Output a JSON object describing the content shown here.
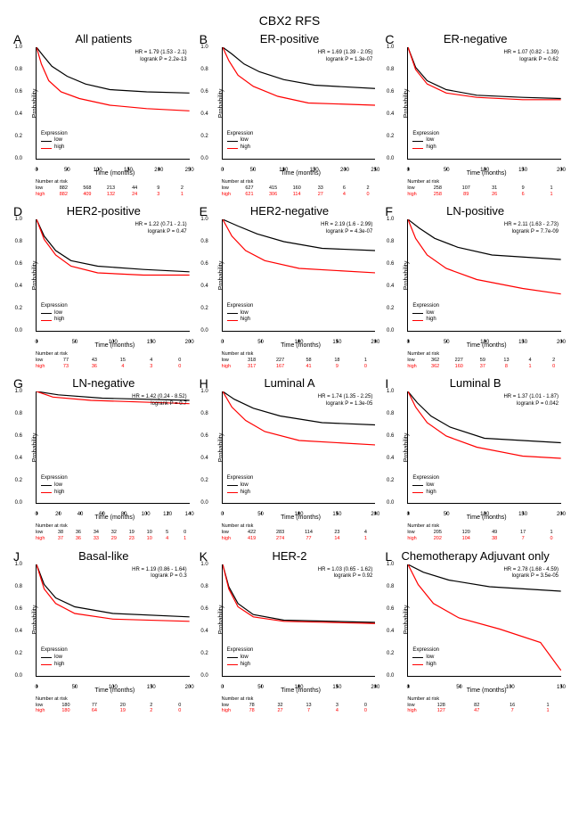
{
  "main_title": "CBX2 RFS",
  "colors": {
    "low": "#000000",
    "high": "#ff0000",
    "axis": "#000000",
    "background": "#ffffff"
  },
  "axis": {
    "ylabel": "Probability",
    "xlabel": "Time (months)",
    "yticks": [
      0.0,
      0.2,
      0.4,
      0.6,
      0.8,
      1.0
    ],
    "legend_title": "Expression",
    "legend_labels": [
      "low",
      "high"
    ],
    "risk_title": "Number at risk"
  },
  "panels": [
    {
      "letter": "A",
      "title": "All patients",
      "hr": "HR = 1.79 (1.53 - 2.1)",
      "logrank": "logrank P = 2.2e-13",
      "xmax": 250,
      "xtick_step": 50,
      "low_curve": [
        [
          0,
          1.0
        ],
        [
          10,
          0.93
        ],
        [
          25,
          0.83
        ],
        [
          50,
          0.74
        ],
        [
          80,
          0.67
        ],
        [
          120,
          0.62
        ],
        [
          180,
          0.6
        ],
        [
          250,
          0.59
        ]
      ],
      "high_curve": [
        [
          0,
          1.0
        ],
        [
          8,
          0.85
        ],
        [
          20,
          0.7
        ],
        [
          40,
          0.6
        ],
        [
          70,
          0.54
        ],
        [
          120,
          0.48
        ],
        [
          180,
          0.45
        ],
        [
          250,
          0.43
        ]
      ],
      "risk_low": [
        "882",
        "568",
        "213",
        "44",
        "9",
        "2"
      ],
      "risk_high": [
        "882",
        "409",
        "132",
        "24",
        "3",
        "1"
      ],
      "risk_positions": [
        0,
        50,
        100,
        150,
        200,
        250
      ]
    },
    {
      "letter": "B",
      "title": "ER-positive",
      "hr": "HR = 1.69 (1.39 - 2.05)",
      "logrank": "logrank P = 1.3e-07",
      "xmax": 250,
      "xtick_step": 50,
      "low_curve": [
        [
          0,
          1.0
        ],
        [
          15,
          0.94
        ],
        [
          35,
          0.85
        ],
        [
          60,
          0.78
        ],
        [
          100,
          0.71
        ],
        [
          150,
          0.66
        ],
        [
          250,
          0.63
        ]
      ],
      "high_curve": [
        [
          0,
          1.0
        ],
        [
          10,
          0.88
        ],
        [
          25,
          0.75
        ],
        [
          50,
          0.65
        ],
        [
          90,
          0.56
        ],
        [
          140,
          0.5
        ],
        [
          250,
          0.48
        ]
      ],
      "risk_low": [
        "627",
        "415",
        "160",
        "33",
        "6",
        "2"
      ],
      "risk_high": [
        "621",
        "306",
        "114",
        "27",
        "4",
        "0"
      ],
      "risk_positions": [
        0,
        50,
        100,
        150,
        200,
        250
      ]
    },
    {
      "letter": "C",
      "title": "ER-negative",
      "hr": "HR = 1.07 (0.82 - 1.39)",
      "logrank": "logrank P = 0.62",
      "xmax": 200,
      "xtick_step": 50,
      "low_curve": [
        [
          0,
          1.0
        ],
        [
          10,
          0.82
        ],
        [
          25,
          0.7
        ],
        [
          50,
          0.62
        ],
        [
          90,
          0.57
        ],
        [
          150,
          0.55
        ],
        [
          200,
          0.54
        ]
      ],
      "high_curve": [
        [
          0,
          1.0
        ],
        [
          10,
          0.8
        ],
        [
          25,
          0.67
        ],
        [
          50,
          0.59
        ],
        [
          90,
          0.55
        ],
        [
          150,
          0.53
        ],
        [
          200,
          0.53
        ]
      ],
      "risk_low": [
        "258",
        "107",
        "31",
        "9",
        "1"
      ],
      "risk_high": [
        "258",
        "89",
        "26",
        "6",
        "1"
      ],
      "risk_positions": [
        0,
        50,
        100,
        150,
        200
      ]
    },
    {
      "letter": "D",
      "title": "HER2-positive",
      "hr": "HR = 1.22 (0.71 - 2.1)",
      "logrank": "logrank P = 0.47",
      "xmax": 200,
      "xtick_step": 50,
      "low_curve": [
        [
          0,
          1.0
        ],
        [
          10,
          0.85
        ],
        [
          25,
          0.72
        ],
        [
          45,
          0.63
        ],
        [
          80,
          0.58
        ],
        [
          140,
          0.55
        ],
        [
          200,
          0.53
        ]
      ],
      "high_curve": [
        [
          0,
          1.0
        ],
        [
          10,
          0.82
        ],
        [
          25,
          0.68
        ],
        [
          45,
          0.58
        ],
        [
          80,
          0.52
        ],
        [
          140,
          0.5
        ],
        [
          200,
          0.5
        ]
      ],
      "risk_low": [
        "77",
        "43",
        "15",
        "4",
        "0"
      ],
      "risk_high": [
        "73",
        "36",
        "4",
        "3",
        "0"
      ],
      "risk_positions": [
        0,
        50,
        100,
        150,
        200
      ]
    },
    {
      "letter": "E",
      "title": "HER2-negative",
      "hr": "HR = 2.19 (1.6 - 2.99)",
      "logrank": "logrank P = 4.3e-07",
      "xmax": 200,
      "xtick_step": 50,
      "low_curve": [
        [
          0,
          1.0
        ],
        [
          20,
          0.94
        ],
        [
          45,
          0.87
        ],
        [
          80,
          0.8
        ],
        [
          130,
          0.74
        ],
        [
          200,
          0.72
        ]
      ],
      "high_curve": [
        [
          0,
          1.0
        ],
        [
          12,
          0.85
        ],
        [
          30,
          0.72
        ],
        [
          55,
          0.63
        ],
        [
          100,
          0.56
        ],
        [
          200,
          0.52
        ]
      ],
      "risk_low": [
        "318",
        "227",
        "58",
        "18",
        "1"
      ],
      "risk_high": [
        "317",
        "167",
        "41",
        "9",
        "0"
      ],
      "risk_positions": [
        0,
        50,
        100,
        150,
        200
      ]
    },
    {
      "letter": "F",
      "title": "LN-positive",
      "hr": "HR = 2.11 (1.63 - 2.73)",
      "logrank": "logrank P = 7.7e-09",
      "xmax": 200,
      "xtick_step": 50,
      "low_curve": [
        [
          0,
          1.0
        ],
        [
          15,
          0.92
        ],
        [
          35,
          0.83
        ],
        [
          65,
          0.75
        ],
        [
          110,
          0.68
        ],
        [
          200,
          0.64
        ]
      ],
      "high_curve": [
        [
          0,
          1.0
        ],
        [
          10,
          0.83
        ],
        [
          25,
          0.68
        ],
        [
          50,
          0.56
        ],
        [
          90,
          0.46
        ],
        [
          150,
          0.38
        ],
        [
          200,
          0.33
        ]
      ],
      "risk_low": [
        "362",
        "227",
        "59",
        "13",
        "4",
        "2"
      ],
      "risk_high": [
        "362",
        "160",
        "37",
        "8",
        "1",
        "0"
      ],
      "risk_positions": [
        0,
        40,
        80,
        120,
        160,
        200
      ]
    },
    {
      "letter": "G",
      "title": "LN-negative",
      "hr": "HR = 1.42 (0.24 - 8.52)",
      "logrank": "logrank P = 0.7",
      "xmax": 140,
      "xtick_step": 20,
      "low_curve": [
        [
          0,
          1.0
        ],
        [
          20,
          0.97
        ],
        [
          60,
          0.94
        ],
        [
          140,
          0.92
        ]
      ],
      "high_curve": [
        [
          0,
          1.0
        ],
        [
          15,
          0.95
        ],
        [
          50,
          0.92
        ],
        [
          140,
          0.89
        ]
      ],
      "risk_low": [
        "38",
        "36",
        "34",
        "32",
        "19",
        "10",
        "5",
        "0"
      ],
      "risk_high": [
        "37",
        "36",
        "33",
        "29",
        "23",
        "10",
        "4",
        "1"
      ],
      "risk_positions": [
        0,
        20,
        40,
        60,
        80,
        100,
        120,
        140
      ]
    },
    {
      "letter": "H",
      "title": "Luminal A",
      "hr": "HR = 1.74 (1.35 - 2.25)",
      "logrank": "logrank P = 1.3e-05",
      "xmax": 200,
      "xtick_step": 50,
      "low_curve": [
        [
          0,
          1.0
        ],
        [
          15,
          0.93
        ],
        [
          40,
          0.85
        ],
        [
          75,
          0.78
        ],
        [
          130,
          0.72
        ],
        [
          200,
          0.7
        ]
      ],
      "high_curve": [
        [
          0,
          1.0
        ],
        [
          12,
          0.86
        ],
        [
          30,
          0.74
        ],
        [
          55,
          0.64
        ],
        [
          100,
          0.56
        ],
        [
          200,
          0.52
        ]
      ],
      "risk_low": [
        "422",
        "283",
        "114",
        "23",
        "4"
      ],
      "risk_high": [
        "419",
        "274",
        "77",
        "14",
        "1"
      ],
      "risk_positions": [
        0,
        50,
        100,
        150,
        200
      ]
    },
    {
      "letter": "I",
      "title": "Luminal B",
      "hr": "HR = 1.37 (1.01 - 1.87)",
      "logrank": "logrank P = 0.042",
      "xmax": 200,
      "xtick_step": 50,
      "low_curve": [
        [
          0,
          1.0
        ],
        [
          12,
          0.9
        ],
        [
          30,
          0.78
        ],
        [
          55,
          0.68
        ],
        [
          100,
          0.58
        ],
        [
          200,
          0.54
        ]
      ],
      "high_curve": [
        [
          0,
          1.0
        ],
        [
          10,
          0.86
        ],
        [
          25,
          0.72
        ],
        [
          50,
          0.6
        ],
        [
          90,
          0.5
        ],
        [
          150,
          0.42
        ],
        [
          200,
          0.4
        ]
      ],
      "risk_low": [
        "205",
        "120",
        "49",
        "17",
        "1"
      ],
      "risk_high": [
        "202",
        "104",
        "38",
        "7",
        "0"
      ],
      "risk_positions": [
        0,
        50,
        100,
        150,
        200
      ]
    },
    {
      "letter": "J",
      "title": "Basal-like",
      "hr": "HR = 1.19 (0.86 - 1.64)",
      "logrank": "logrank P = 0.3",
      "xmax": 200,
      "xtick_step": 50,
      "low_curve": [
        [
          0,
          1.0
        ],
        [
          10,
          0.82
        ],
        [
          25,
          0.7
        ],
        [
          50,
          0.62
        ],
        [
          100,
          0.56
        ],
        [
          200,
          0.53
        ]
      ],
      "high_curve": [
        [
          0,
          1.0
        ],
        [
          10,
          0.78
        ],
        [
          25,
          0.65
        ],
        [
          50,
          0.56
        ],
        [
          100,
          0.51
        ],
        [
          200,
          0.49
        ]
      ],
      "risk_low": [
        "180",
        "77",
        "20",
        "2",
        "0"
      ],
      "risk_high": [
        "180",
        "64",
        "19",
        "2",
        "0"
      ],
      "risk_positions": [
        0,
        50,
        100,
        150,
        200
      ]
    },
    {
      "letter": "K",
      "title": "HER-2",
      "hr": "HR = 1.03 (0.65 - 1.62)",
      "logrank": "logrank P = 0.92",
      "xmax": 200,
      "xtick_step": 50,
      "low_curve": [
        [
          0,
          1.0
        ],
        [
          8,
          0.8
        ],
        [
          20,
          0.65
        ],
        [
          40,
          0.55
        ],
        [
          80,
          0.5
        ],
        [
          200,
          0.48
        ]
      ],
      "high_curve": [
        [
          0,
          1.0
        ],
        [
          8,
          0.78
        ],
        [
          20,
          0.62
        ],
        [
          40,
          0.53
        ],
        [
          80,
          0.49
        ],
        [
          200,
          0.47
        ]
      ],
      "risk_low": [
        "78",
        "32",
        "13",
        "3",
        "0"
      ],
      "risk_high": [
        "78",
        "27",
        "7",
        "4",
        "0"
      ],
      "risk_positions": [
        0,
        50,
        100,
        150,
        200
      ]
    },
    {
      "letter": "L",
      "title": "Chemotherapy Adjuvant only",
      "hr": "HR = 2.78 (1.68 - 4.59)",
      "logrank": "logrank P = 3.5e-05",
      "xmax": 150,
      "xtick_step": 50,
      "low_curve": [
        [
          0,
          1.0
        ],
        [
          15,
          0.93
        ],
        [
          40,
          0.86
        ],
        [
          80,
          0.8
        ],
        [
          150,
          0.76
        ]
      ],
      "high_curve": [
        [
          0,
          1.0
        ],
        [
          10,
          0.82
        ],
        [
          25,
          0.65
        ],
        [
          50,
          0.52
        ],
        [
          90,
          0.42
        ],
        [
          130,
          0.3
        ],
        [
          150,
          0.05
        ]
      ],
      "risk_low": [
        "128",
        "82",
        "16",
        "1"
      ],
      "risk_high": [
        "127",
        "47",
        "7",
        "1"
      ],
      "risk_positions": [
        0,
        50,
        100,
        150
      ]
    }
  ]
}
